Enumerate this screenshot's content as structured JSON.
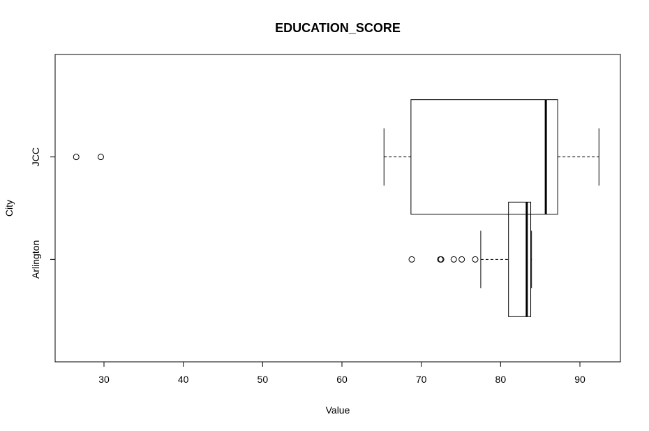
{
  "chart_data": {
    "type": "boxplot",
    "orientation": "horizontal",
    "title": "EDUCATION_SCORE",
    "xlabel": "Value",
    "ylabel": "City",
    "xlim": [
      24,
      95
    ],
    "x_ticks": [
      30,
      40,
      50,
      60,
      70,
      80,
      90
    ],
    "grid": false,
    "legend": "none",
    "categories": [
      "Arlington",
      "JCC"
    ],
    "series": [
      {
        "category": "Arlington",
        "whisker_low": 77.5,
        "q1": 81.0,
        "median": 83.3,
        "q3": 83.8,
        "whisker_high": 83.9,
        "outliers": [
          68.8,
          72.4,
          72.5,
          74.1,
          75.1,
          76.8
        ]
      },
      {
        "category": "JCC",
        "whisker_low": 65.3,
        "q1": 68.7,
        "median": 85.7,
        "q3": 87.2,
        "whisker_high": 92.4,
        "outliers": [
          26.5,
          29.6
        ]
      }
    ]
  }
}
